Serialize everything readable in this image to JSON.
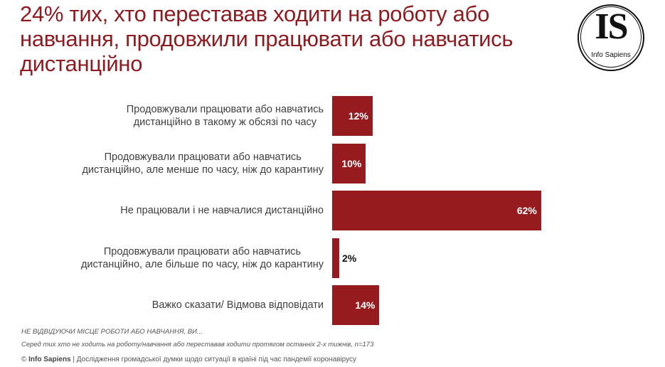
{
  "title": "24% тих, хто переставав ходити на роботу або навчання, продовжили працювати або навчатись дистанційно",
  "logo": {
    "mark": "IS",
    "name": "Info Sapiens"
  },
  "colors": {
    "bar": "#951b1f",
    "title": "#8e1b1f"
  },
  "rows": [
    {
      "label_line1": "Продовжували працювати або навчатись",
      "label_line2": "дистанційно в такому ж обсязі по часу",
      "value": 12,
      "display": "12%"
    },
    {
      "label_line1": "Продовжували працювати або навчатись",
      "label_line2": "дистанційно, але менше по часу, ніж до карантину",
      "value": 10,
      "display": "10%"
    },
    {
      "label_line1": "Не працювали і не навчалися дистанційно",
      "label_line2": "",
      "value": 62,
      "display": "62%"
    },
    {
      "label_line1": "Продовжували працювати або навчатись",
      "label_line2": "дистанційно, але більше по часу, ніж до карантину",
      "value": 2,
      "display": "2%"
    },
    {
      "label_line1": "Важко сказати/ Відмова відповідати",
      "label_line2": "",
      "value": 14,
      "display": "14%"
    }
  ],
  "notes": {
    "question": "НЕ ВІДВІДУЮЧИ МІСЦЕ РОБОТИ АБО НАВЧАННЯ, ВИ...",
    "base": "Серед тих хто не ходить на роботу/навчання або переставав ходити протягом останніх 2-х тижнів, n=173"
  },
  "footer": {
    "copyright": "© ",
    "brand": "Info Sapiens",
    "text": " | Дослідження громадської думки щодо ситуації в країні під час пандемії коронавірусу"
  },
  "chart_data": {
    "type": "bar",
    "orientation": "horizontal",
    "title": "24% тих, хто переставав ходити на роботу або навчання, продовжили працювати або навчатись дистанційно",
    "categories": [
      "Продовжували працювати або навчатись дистанційно в такому ж обсязі по часу",
      "Продовжували працювати або навчатись дистанційно, але менше по часу, ніж до карантину",
      "Не працювали і не навчалися дистанційно",
      "Продовжували працювати або навчатись дистанційно, але більше по часу, ніж до карантину",
      "Важко сказати/ Відмова відповідати"
    ],
    "values": [
      12,
      10,
      62,
      2,
      14
    ],
    "unit": "%",
    "xlabel": "",
    "ylabel": "",
    "grid": false,
    "legend": null,
    "data_labels": true
  }
}
